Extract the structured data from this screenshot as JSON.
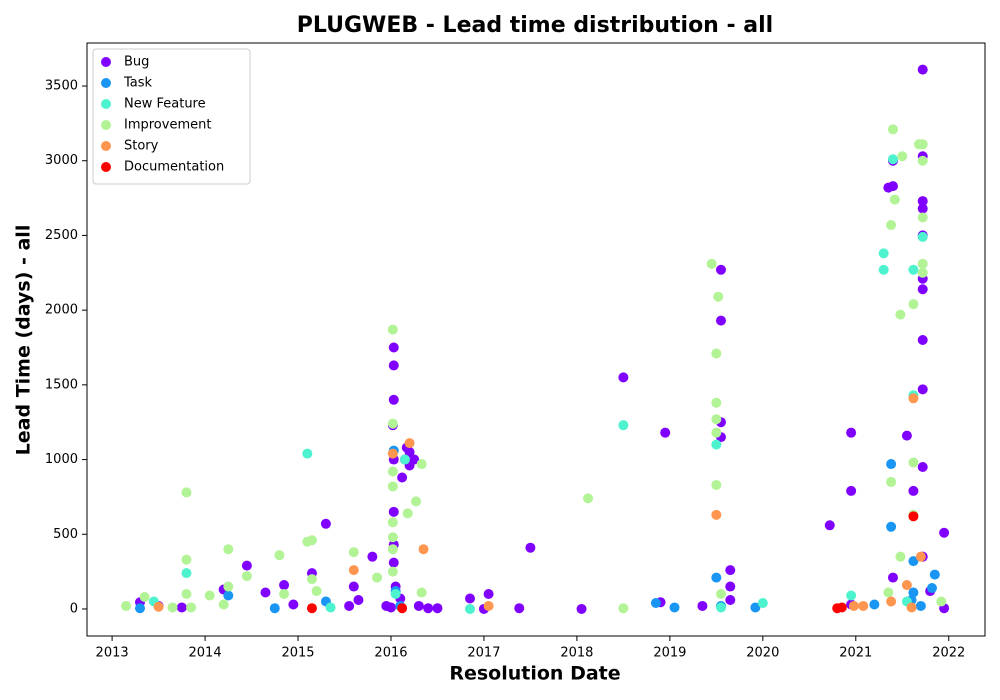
{
  "chart_data": {
    "type": "scatter",
    "title": "PLUGWEB - Lead time distribution - all",
    "xlabel": "Resolution Date",
    "ylabel": "Lead Time (days) - all",
    "xlim": [
      2012.73,
      2022.39
    ],
    "ylim": [
      -181,
      3788
    ],
    "xticks": [
      2013,
      2014,
      2015,
      2016,
      2017,
      2018,
      2019,
      2020,
      2021,
      2022
    ],
    "yticks": [
      0,
      500,
      1000,
      1500,
      2000,
      2500,
      3000,
      3500
    ],
    "legend": "upper left",
    "series": [
      {
        "name": "Bug",
        "color": "#8000ff",
        "x": [
          2013.3,
          2013.5,
          2013.75,
          2014.2,
          2014.45,
          2014.65,
          2014.85,
          2014.95,
          2015.15,
          2015.3,
          2015.55,
          2015.6,
          2015.65,
          2015.8,
          2015.95,
          2016.0,
          2016.02,
          2016.03,
          2016.03,
          2016.03,
          2016.03,
          2016.03,
          2016.03,
          2016.03,
          2016.05,
          2016.1,
          2016.12,
          2016.15,
          2016.17,
          2016.2,
          2016.2,
          2016.25,
          2016.3,
          2016.4,
          2016.5,
          2016.85,
          2017.0,
          2017.05,
          2017.38,
          2017.5,
          2018.05,
          2018.5,
          2018.9,
          2018.95,
          2019.35,
          2019.55,
          2019.55,
          2019.55,
          2019.55,
          2019.65,
          2019.65,
          2019.65,
          2020.72,
          2020.95,
          2020.95,
          2020.95,
          2021.35,
          2021.4,
          2021.4,
          2021.4,
          2021.55,
          2021.62,
          2021.72,
          2021.72,
          2021.72,
          2021.72,
          2021.72,
          2021.72,
          2021.72,
          2021.72,
          2021.72,
          2021.72,
          2021.72,
          2021.8,
          2021.95,
          2021.95
        ],
        "values": [
          45,
          20,
          10,
          130,
          290,
          110,
          160,
          30,
          240,
          570,
          20,
          150,
          60,
          350,
          20,
          10,
          1230,
          1400,
          1750,
          1630,
          650,
          1000,
          430,
          310,
          150,
          70,
          880,
          1000,
          1080,
          1050,
          960,
          1000,
          20,
          5,
          5,
          70,
          0,
          100,
          5,
          410,
          0,
          1550,
          45,
          1180,
          20,
          2270,
          1930,
          1250,
          1150,
          260,
          150,
          60,
          560,
          1180,
          790,
          30,
          2820,
          2830,
          3000,
          210,
          1160,
          790,
          3610,
          3030,
          2730,
          2680,
          2500,
          2210,
          2140,
          1800,
          1470,
          950,
          350,
          120,
          510,
          5
        ]
      },
      {
        "name": "Task",
        "color": "#1996f3",
        "x": [
          2013.3,
          2014.25,
          2014.75,
          2015.3,
          2016.03,
          2016.05,
          2016.1,
          2018.85,
          2019.05,
          2019.5,
          2019.55,
          2019.92,
          2021.2,
          2021.38,
          2021.38,
          2021.6,
          2021.62,
          2021.62,
          2021.85,
          2021.82,
          2021.7
        ],
        "values": [
          5,
          90,
          5,
          50,
          1060,
          120,
          20,
          40,
          10,
          210,
          20,
          10,
          30,
          970,
          550,
          60,
          320,
          110,
          230,
          140,
          20
        ]
      },
      {
        "name": "New Feature",
        "color": "#4df3ce",
        "x": [
          2013.45,
          2013.8,
          2015.1,
          2015.35,
          2016.05,
          2016.15,
          2016.85,
          2018.5,
          2019.5,
          2019.55,
          2020.0,
          2020.95,
          2021.3,
          2021.3,
          2021.4,
          2021.62,
          2021.72,
          2021.55,
          2021.62
        ],
        "values": [
          50,
          240,
          1040,
          10,
          100,
          1000,
          0,
          1230,
          1100,
          10,
          40,
          90,
          2380,
          2270,
          3010,
          2270,
          2490,
          50,
          1430
        ]
      },
      {
        "name": "Improvement",
        "color": "#b2f396",
        "x": [
          2013.15,
          2013.35,
          2013.65,
          2013.8,
          2013.8,
          2013.8,
          2013.85,
          2014.05,
          2014.25,
          2014.25,
          2014.2,
          2014.45,
          2014.8,
          2014.85,
          2015.1,
          2015.15,
          2015.15,
          2015.2,
          2015.6,
          2015.85,
          2016.02,
          2016.02,
          2016.02,
          2016.02,
          2016.02,
          2016.02,
          2016.02,
          2016.02,
          2016.18,
          2016.27,
          2016.33,
          2016.33,
          2018.12,
          2018.5,
          2019.45,
          2019.52,
          2019.5,
          2019.5,
          2019.5,
          2019.5,
          2019.5,
          2019.55,
          2021.4,
          2021.5,
          2021.38,
          2021.42,
          2021.48,
          2021.38,
          2021.62,
          2021.62,
          2021.62,
          2021.68,
          2021.72,
          2021.72,
          2021.72,
          2021.72,
          2021.72,
          2021.48,
          2021.92,
          2021.35
        ],
        "values": [
          20,
          80,
          10,
          780,
          330,
          100,
          10,
          90,
          400,
          150,
          30,
          220,
          360,
          100,
          450,
          460,
          200,
          120,
          380,
          210,
          1870,
          1240,
          920,
          820,
          580,
          480,
          400,
          250,
          640,
          720,
          970,
          110,
          740,
          5,
          2310,
          2090,
          1710,
          1380,
          1270,
          1180,
          830,
          100,
          3210,
          3030,
          2570,
          2740,
          1970,
          850,
          2040,
          980,
          630,
          3110,
          3110,
          3000,
          2620,
          2310,
          2250,
          350,
          50,
          110
        ]
      },
      {
        "name": "Story",
        "color": "#ff964f",
        "x": [
          2013.5,
          2015.6,
          2016.02,
          2016.2,
          2016.35,
          2017.05,
          2019.5,
          2020.98,
          2021.08,
          2021.38,
          2021.55,
          2021.62,
          2021.7,
          2021.6
        ],
        "values": [
          15,
          260,
          1040,
          1110,
          400,
          20,
          630,
          20,
          20,
          50,
          160,
          1410,
          350,
          10
        ]
      },
      {
        "name": "Documentation",
        "color": "#ff0000",
        "x": [
          2015.15,
          2016.12,
          2020.8,
          2020.85,
          2021.62
        ],
        "values": [
          5,
          5,
          5,
          10,
          620
        ]
      }
    ]
  }
}
